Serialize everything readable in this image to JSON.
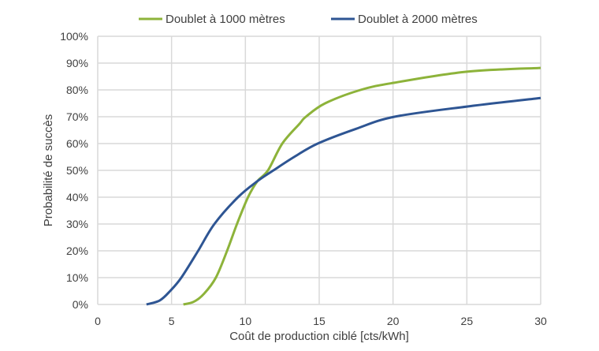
{
  "chart_data": {
    "type": "line",
    "title": "",
    "xlabel": "Coût de production ciblé [cts/kWh]",
    "ylabel": "Probabilité de succès",
    "xlim": [
      0,
      30
    ],
    "ylim": [
      0,
      100
    ],
    "xticks": [
      "0",
      "5",
      "10",
      "15",
      "20",
      "25",
      "30"
    ],
    "yticks": [
      "0%",
      "10%",
      "20%",
      "30%",
      "40%",
      "50%",
      "60%",
      "70%",
      "80%",
      "90%",
      "100%"
    ],
    "grid": true,
    "legend_position": "top",
    "series": [
      {
        "name": "Doublet à 1000 mètres",
        "color": "#8db33a",
        "x": [
          5.8,
          6.5,
          7.2,
          8.0,
          8.76,
          9.43,
          10.18,
          10.82,
          11.53,
          12.5,
          13.67,
          14.1,
          15.4,
          17.8,
          20,
          25,
          30
        ],
        "y": [
          0,
          1,
          4,
          10,
          20,
          30,
          40,
          46,
          50,
          60,
          67.4,
          70,
          75,
          80,
          82.6,
          86.8,
          88.2
        ]
      },
      {
        "name": "Doublet à 2000 mètres",
        "color": "#2e5593",
        "x": [
          3.3,
          4.2,
          4.9,
          5.66,
          6.8,
          7.9,
          9.5,
          10.82,
          11.9,
          13.3,
          14.9,
          17.5,
          20.1,
          25,
          30
        ],
        "y": [
          0,
          1.5,
          5,
          10,
          20,
          30,
          40,
          46,
          50,
          55,
          60,
          65.5,
          70,
          73.8,
          77
        ]
      }
    ]
  }
}
